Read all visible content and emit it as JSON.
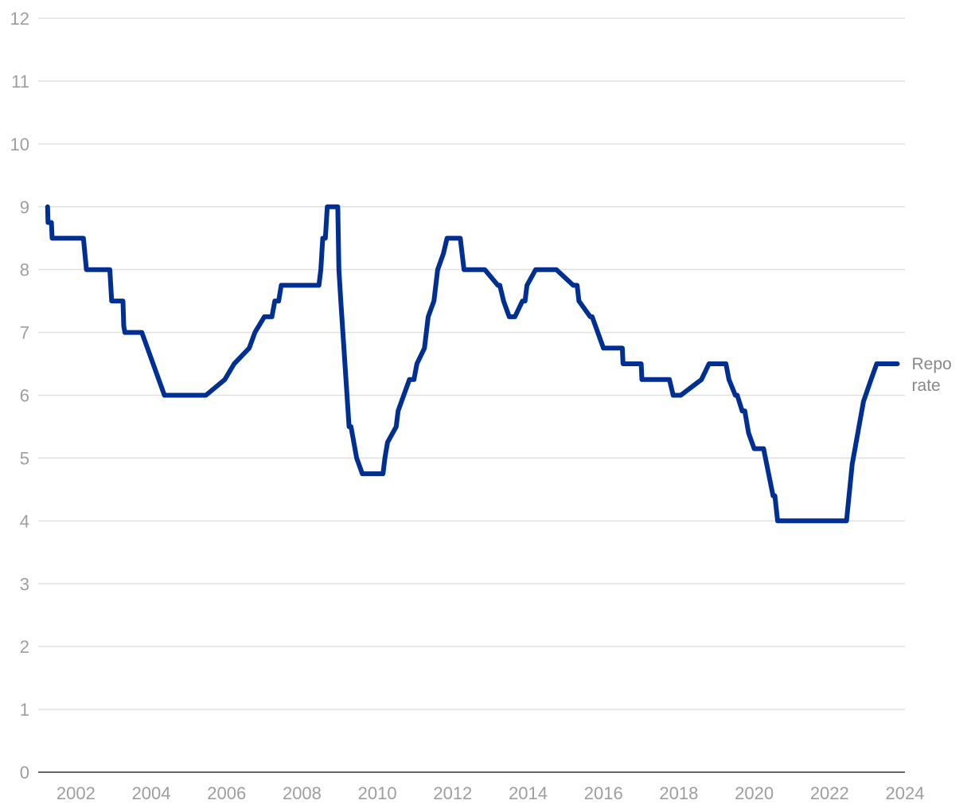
{
  "chart_data": {
    "type": "line",
    "title": "",
    "xlabel": "",
    "ylabel": "",
    "xlim": [
      2001,
      2024
    ],
    "ylim": [
      0,
      12
    ],
    "grid": true,
    "y_ticks": [
      "0",
      "1",
      "2",
      "3",
      "4",
      "5",
      "6",
      "7",
      "8",
      "9",
      "10",
      "11",
      "12"
    ],
    "x_ticks": [
      "2002",
      "2004",
      "2006",
      "2008",
      "2010",
      "2012",
      "2014",
      "2016",
      "2018",
      "2020",
      "2022",
      "2024"
    ],
    "colors": {
      "series": "#002f93",
      "grid": "#e0e0e0",
      "axis": "#333333",
      "tick_text": "#9e9e9e",
      "label_text": "#888888"
    },
    "series": [
      {
        "name": "Repo rate",
        "label_lines": [
          "Repo",
          "rate"
        ],
        "points": [
          [
            2001.25,
            9.0
          ],
          [
            2001.26,
            8.75
          ],
          [
            2001.35,
            8.75
          ],
          [
            2001.37,
            8.5
          ],
          [
            2002.2,
            8.5
          ],
          [
            2002.28,
            8.0
          ],
          [
            2002.9,
            8.0
          ],
          [
            2002.95,
            7.5
          ],
          [
            2003.25,
            7.5
          ],
          [
            2003.27,
            7.1
          ],
          [
            2003.3,
            7.0
          ],
          [
            2003.75,
            7.0
          ],
          [
            2004.35,
            6.0
          ],
          [
            2005.45,
            6.0
          ],
          [
            2005.95,
            6.25
          ],
          [
            2006.2,
            6.5
          ],
          [
            2006.6,
            6.75
          ],
          [
            2006.75,
            7.0
          ],
          [
            2007.0,
            7.25
          ],
          [
            2007.2,
            7.25
          ],
          [
            2007.28,
            7.5
          ],
          [
            2007.38,
            7.5
          ],
          [
            2007.45,
            7.75
          ],
          [
            2008.45,
            7.75
          ],
          [
            2008.5,
            8.0
          ],
          [
            2008.55,
            8.5
          ],
          [
            2008.62,
            8.5
          ],
          [
            2008.67,
            9.0
          ],
          [
            2008.95,
            9.0
          ],
          [
            2008.98,
            8.0
          ],
          [
            2009.03,
            7.5
          ],
          [
            2009.25,
            5.5
          ],
          [
            2009.3,
            5.5
          ],
          [
            2009.45,
            5.0
          ],
          [
            2009.6,
            4.75
          ],
          [
            2010.15,
            4.75
          ],
          [
            2010.2,
            5.0
          ],
          [
            2010.27,
            5.25
          ],
          [
            2010.5,
            5.5
          ],
          [
            2010.55,
            5.75
          ],
          [
            2010.85,
            6.25
          ],
          [
            2010.97,
            6.25
          ],
          [
            2011.05,
            6.5
          ],
          [
            2011.25,
            6.75
          ],
          [
            2011.35,
            7.25
          ],
          [
            2011.5,
            7.5
          ],
          [
            2011.6,
            8.0
          ],
          [
            2011.75,
            8.25
          ],
          [
            2011.85,
            8.5
          ],
          [
            2012.2,
            8.5
          ],
          [
            2012.3,
            8.0
          ],
          [
            2012.85,
            8.0
          ],
          [
            2013.2,
            7.75
          ],
          [
            2013.25,
            7.75
          ],
          [
            2013.35,
            7.5
          ],
          [
            2013.5,
            7.25
          ],
          [
            2013.65,
            7.25
          ],
          [
            2013.85,
            7.5
          ],
          [
            2013.92,
            7.5
          ],
          [
            2013.97,
            7.75
          ],
          [
            2014.2,
            8.0
          ],
          [
            2014.75,
            8.0
          ],
          [
            2015.2,
            7.75
          ],
          [
            2015.3,
            7.75
          ],
          [
            2015.35,
            7.5
          ],
          [
            2015.65,
            7.25
          ],
          [
            2015.7,
            7.25
          ],
          [
            2016.0,
            6.75
          ],
          [
            2016.5,
            6.75
          ],
          [
            2016.52,
            6.5
          ],
          [
            2017.0,
            6.5
          ],
          [
            2017.02,
            6.25
          ],
          [
            2017.75,
            6.25
          ],
          [
            2017.85,
            6.0
          ],
          [
            2018.05,
            6.0
          ],
          [
            2018.6,
            6.25
          ],
          [
            2018.8,
            6.5
          ],
          [
            2019.25,
            6.5
          ],
          [
            2019.33,
            6.25
          ],
          [
            2019.5,
            6.0
          ],
          [
            2019.55,
            6.0
          ],
          [
            2019.68,
            5.75
          ],
          [
            2019.75,
            5.75
          ],
          [
            2019.85,
            5.4
          ],
          [
            2020.0,
            5.15
          ],
          [
            2020.25,
            5.15
          ],
          [
            2020.5,
            4.4
          ],
          [
            2020.55,
            4.4
          ],
          [
            2020.62,
            4.0
          ],
          [
            2022.4,
            4.0
          ],
          [
            2022.45,
            4.0
          ],
          [
            2022.6,
            4.9
          ],
          [
            2022.9,
            5.9
          ],
          [
            2023.1,
            6.25
          ],
          [
            2023.25,
            6.5
          ],
          [
            2023.8,
            6.5
          ]
        ]
      }
    ]
  }
}
